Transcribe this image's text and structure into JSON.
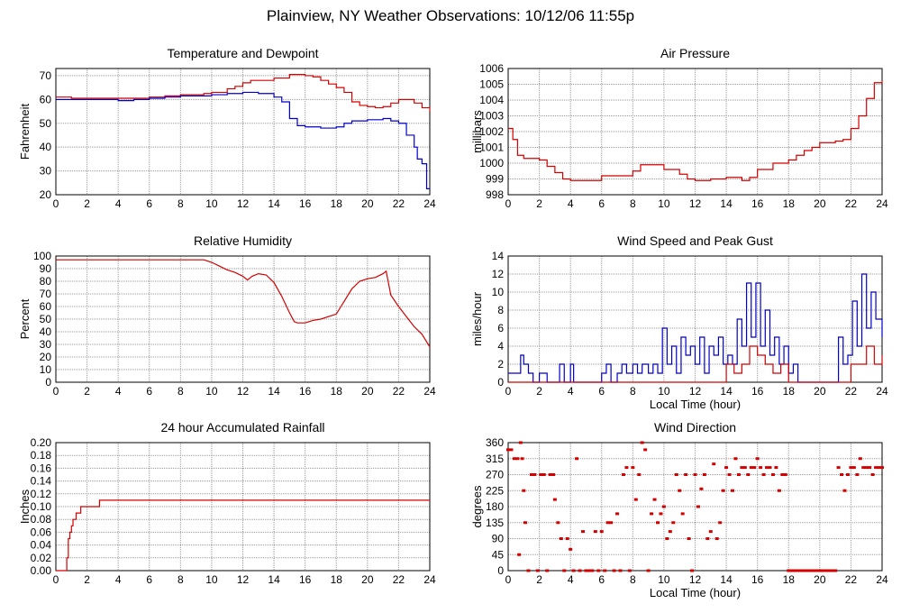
{
  "page_title": "Plainview, NY Weather Observations: 10/12/06 11:55p",
  "colors": {
    "red": "#d40000",
    "blue": "#0000cc",
    "grid": "#9a9a9a",
    "axis": "#000000"
  },
  "chart_data": [
    {
      "id": "temp",
      "type": "line",
      "title": "Temperature and Dewpoint",
      "xlabel": "",
      "ylabel": "Fahrenheit",
      "xlim": [
        0,
        24
      ],
      "ylim": [
        20,
        73
      ],
      "yticks": [
        20,
        30,
        40,
        50,
        60,
        70
      ],
      "xticks": [
        0,
        2,
        4,
        6,
        8,
        10,
        12,
        14,
        16,
        18,
        20,
        22,
        24
      ],
      "series": [
        {
          "color": "#d40000",
          "step": true,
          "x": [
            0,
            0.5,
            1,
            2,
            3,
            4,
            5,
            6,
            6.5,
            7,
            8,
            9,
            9.5,
            10,
            11,
            11.5,
            12,
            12.5,
            13,
            14,
            15,
            15.5,
            16,
            16.5,
            17,
            17.5,
            18,
            18.5,
            19,
            19.5,
            20,
            20.5,
            21,
            21.5,
            22,
            22.5,
            23,
            23.5,
            24
          ],
          "y": [
            61,
            61,
            60.5,
            60.5,
            60.5,
            60.5,
            60.5,
            61,
            61,
            61.5,
            62,
            62,
            62.5,
            63,
            64.5,
            65.5,
            67,
            68,
            68,
            69,
            70.5,
            70.5,
            70,
            69.5,
            68,
            66.5,
            65,
            63,
            59,
            57.5,
            57,
            56.5,
            57,
            58.5,
            60,
            60,
            58.5,
            56.5,
            55
          ]
        },
        {
          "color": "#0000cc",
          "step": true,
          "x": [
            0,
            0.5,
            1,
            2,
            3,
            4,
            5,
            6,
            7,
            8,
            9,
            10,
            11,
            12,
            12.5,
            13,
            13.5,
            14,
            14.5,
            15,
            15.5,
            16,
            17,
            18,
            18.5,
            19,
            20,
            21,
            21.5,
            22,
            22.5,
            23,
            23.2,
            23.5,
            23.8,
            24
          ],
          "y": [
            60,
            60,
            60,
            60,
            60,
            59.5,
            60,
            60.5,
            61,
            61.5,
            61.5,
            62,
            62.5,
            63,
            63,
            62.5,
            62.5,
            61,
            59,
            52,
            49,
            48.5,
            48,
            48.5,
            50,
            51,
            51.5,
            52,
            51,
            50,
            45,
            40,
            35,
            33,
            22.5,
            22.5
          ]
        }
      ]
    },
    {
      "id": "pressure",
      "type": "line",
      "title": "Air Pressure",
      "xlabel": "",
      "ylabel": "millibars",
      "xlim": [
        0,
        24
      ],
      "ylim": [
        998,
        1006
      ],
      "yticks": [
        998,
        999,
        1000,
        1001,
        1002,
        1003,
        1004,
        1005,
        1006
      ],
      "xticks": [
        0,
        2,
        4,
        6,
        8,
        10,
        12,
        14,
        16,
        18,
        20,
        22,
        24
      ],
      "series": [
        {
          "color": "#d40000",
          "step": true,
          "x": [
            0,
            0.3,
            0.6,
            1,
            2,
            2.5,
            3,
            3.5,
            4,
            5,
            6,
            7,
            8,
            8.5,
            9,
            10,
            11,
            11.5,
            12,
            13,
            14,
            15,
            15.5,
            16,
            17,
            18,
            18.5,
            19,
            19.5,
            20,
            21,
            21.5,
            22,
            22.5,
            23,
            23.5,
            24
          ],
          "y": [
            1002.2,
            1001.5,
            1000.5,
            1000.3,
            1000.2,
            999.8,
            999.4,
            999.0,
            998.9,
            998.9,
            999.2,
            999.2,
            999.5,
            999.9,
            999.9,
            999.6,
            999.3,
            999.0,
            998.9,
            999.0,
            999.1,
            998.9,
            999.1,
            999.6,
            1000.0,
            1000.2,
            1000.5,
            1000.8,
            1001.0,
            1001.3,
            1001.4,
            1001.5,
            1002.2,
            1003.0,
            1004.1,
            1005.1,
            1005.2
          ]
        }
      ]
    },
    {
      "id": "humidity",
      "type": "line",
      "title": "Relative Humidity",
      "xlabel": "",
      "ylabel": "Percent",
      "xlim": [
        0,
        24
      ],
      "ylim": [
        0,
        100
      ],
      "yticks": [
        0,
        10,
        20,
        30,
        40,
        50,
        60,
        70,
        80,
        90,
        100
      ],
      "xticks": [
        0,
        2,
        4,
        6,
        8,
        10,
        12,
        14,
        16,
        18,
        20,
        22,
        24
      ],
      "series": [
        {
          "color": "#d40000",
          "step": false,
          "x": [
            0,
            2,
            4,
            6,
            8,
            9.5,
            10,
            10.5,
            11,
            11.5,
            12,
            12.3,
            12.6,
            13,
            13.5,
            14,
            14.5,
            15,
            15.3,
            15.5,
            16,
            16.5,
            17,
            17.5,
            18,
            18.5,
            19,
            19.5,
            20,
            20.5,
            21,
            21.2,
            21.5,
            22,
            22.5,
            23,
            23.5,
            24
          ],
          "y": [
            97,
            97,
            97,
            97,
            97,
            97,
            95,
            92,
            89,
            87,
            84,
            81,
            84,
            86,
            85,
            79,
            68,
            55,
            48,
            47,
            47,
            49,
            50,
            52,
            54,
            64,
            74,
            80,
            82,
            83,
            86,
            88,
            69,
            60,
            52,
            44,
            38,
            28
          ]
        }
      ]
    },
    {
      "id": "wind",
      "type": "line",
      "title": "Wind Speed and Peak Gust",
      "xlabel": "Local Time (hour)",
      "ylabel": "miles/hour",
      "xlim": [
        0,
        24
      ],
      "ylim": [
        0,
        14
      ],
      "yticks": [
        0,
        2,
        4,
        6,
        8,
        10,
        12,
        14
      ],
      "xticks": [
        0,
        2,
        4,
        6,
        8,
        10,
        12,
        14,
        16,
        18,
        20,
        22,
        24
      ],
      "series": [
        {
          "color": "#0000cc",
          "step": true,
          "x": [
            0,
            0.5,
            0.8,
            1,
            1.3,
            1.6,
            2,
            2.5,
            3,
            3.3,
            3.6,
            4,
            4.2,
            4.5,
            5,
            5.5,
            6,
            6.3,
            6.6,
            7,
            7.3,
            7.6,
            8,
            8.3,
            8.6,
            9,
            9.3,
            9.6,
            9.9,
            10.2,
            10.5,
            10.8,
            11.1,
            11.4,
            11.7,
            12,
            12.3,
            12.6,
            12.9,
            13.2,
            13.5,
            13.8,
            14.1,
            14.4,
            14.7,
            15,
            15.3,
            15.6,
            15.9,
            16.2,
            16.5,
            16.8,
            17.1,
            17.4,
            17.7,
            18,
            18.3,
            18.6,
            19,
            20,
            21,
            21.2,
            21.5,
            21.8,
            22.1,
            22.4,
            22.7,
            23,
            23.3,
            23.6,
            24
          ],
          "y": [
            1,
            1,
            3,
            2,
            1,
            0,
            1,
            0,
            0,
            2,
            0,
            2,
            0,
            0,
            0,
            0,
            1,
            2,
            0,
            1,
            2,
            1,
            2,
            1,
            2,
            1,
            2,
            1,
            6,
            2,
            4,
            1,
            5,
            3,
            4,
            2,
            5,
            1,
            4,
            3,
            5,
            2,
            3,
            2,
            7,
            4,
            11,
            5,
            11,
            4,
            8,
            3,
            5,
            2,
            4,
            1,
            2,
            0,
            0,
            0,
            0,
            5,
            2,
            3,
            9,
            4,
            12,
            6,
            10,
            7,
            5
          ]
        },
        {
          "color": "#d40000",
          "step": true,
          "x": [
            0,
            13.5,
            14,
            14.5,
            15,
            15.5,
            16,
            16.5,
            17,
            17.5,
            18,
            21.5,
            22,
            22.5,
            23,
            23.5,
            24
          ],
          "y": [
            0,
            0,
            2,
            1,
            2,
            4,
            3,
            2,
            1,
            2,
            0,
            0,
            2,
            2,
            4,
            2,
            3
          ]
        }
      ]
    },
    {
      "id": "rain",
      "type": "line",
      "title": "24 hour Accumulated Rainfall",
      "xlabel": "",
      "ylabel": "Inches",
      "xlim": [
        0,
        24
      ],
      "ylim": [
        0,
        0.2
      ],
      "yticks": [
        "0.00",
        "0.02",
        "0.04",
        "0.06",
        "0.08",
        "0.10",
        "0.12",
        "0.14",
        "0.16",
        "0.18",
        "0.20"
      ],
      "xticks": [
        0,
        2,
        4,
        6,
        8,
        10,
        12,
        14,
        16,
        18,
        20,
        22,
        24
      ],
      "series": [
        {
          "color": "#d40000",
          "step": true,
          "x": [
            0,
            0.6,
            0.7,
            0.8,
            0.9,
            1.0,
            1.1,
            1.3,
            1.6,
            2.0,
            2.5,
            2.8,
            24
          ],
          "y": [
            0,
            0,
            0.02,
            0.05,
            0.06,
            0.07,
            0.08,
            0.09,
            0.1,
            0.1,
            0.1,
            0.11,
            0.11
          ]
        }
      ]
    },
    {
      "id": "winddir",
      "type": "scatter",
      "title": "Wind Direction",
      "xlabel": "Local Time (hour)",
      "ylabel": "degrees",
      "xlim": [
        0,
        24
      ],
      "ylim": [
        0,
        360
      ],
      "yticks": [
        0,
        45,
        90,
        135,
        180,
        225,
        270,
        315,
        360
      ],
      "xticks": [
        0,
        2,
        4,
        6,
        8,
        10,
        12,
        14,
        16,
        18,
        20,
        22,
        24
      ],
      "series": [
        {
          "color": "#d40000",
          "x": [
            0,
            0.2,
            0.4,
            0.6,
            0.7,
            0.8,
            0.9,
            1.0,
            1.1,
            1.3,
            1.5,
            1.7,
            1.9,
            2.1,
            2.3,
            2.5,
            2.7,
            2.9,
            3.0,
            3.2,
            3.4,
            3.6,
            3.8,
            4.0,
            4.2,
            4.4,
            4.6,
            4.8,
            5.0,
            5.2,
            5.4,
            5.6,
            5.8,
            6.0,
            6.2,
            6.4,
            6.6,
            6.8,
            7.0,
            7.2,
            7.4,
            7.6,
            7.8,
            8.0,
            8.2,
            8.4,
            8.6,
            8.8,
            9.0,
            9.2,
            9.4,
            9.6,
            9.8,
            10.0,
            10.2,
            10.4,
            10.6,
            10.8,
            11.0,
            11.2,
            11.4,
            11.6,
            11.8,
            12.0,
            12.2,
            12.4,
            12.6,
            12.8,
            13.0,
            13.2,
            13.4,
            13.6,
            13.8,
            14.0,
            14.2,
            14.4,
            14.6,
            14.8,
            15.0,
            15.2,
            15.4,
            15.6,
            15.8,
            16.0,
            16.2,
            16.4,
            16.6,
            16.8,
            17.0,
            17.2,
            17.4,
            17.6,
            17.8,
            18.0,
            18.2,
            18.4,
            18.6,
            18.8,
            19.0,
            19.2,
            19.4,
            19.6,
            19.8,
            20.0,
            20.2,
            20.4,
            20.6,
            20.8,
            21.0,
            21.2,
            21.4,
            21.6,
            21.8,
            22.0,
            22.2,
            22.4,
            22.6,
            22.8,
            23.0,
            23.2,
            23.4,
            23.6,
            23.8,
            24.0
          ],
          "y": [
            340,
            340,
            315,
            315,
            45,
            360,
            315,
            225,
            135,
            0,
            270,
            270,
            0,
            270,
            270,
            0,
            270,
            270,
            200,
            135,
            90,
            0,
            90,
            60,
            0,
            315,
            0,
            110,
            0,
            0,
            0,
            110,
            0,
            110,
            0,
            135,
            135,
            0,
            160,
            0,
            270,
            290,
            0,
            290,
            200,
            270,
            360,
            340,
            0,
            160,
            200,
            135,
            160,
            180,
            90,
            110,
            135,
            270,
            225,
            160,
            270,
            90,
            0,
            270,
            180,
            230,
            270,
            90,
            110,
            300,
            90,
            135,
            225,
            290,
            270,
            225,
            315,
            270,
            290,
            290,
            270,
            290,
            290,
            315,
            290,
            270,
            290,
            290,
            270,
            290,
            225,
            270,
            270,
            0,
            0,
            0,
            0,
            0,
            0,
            0,
            0,
            0,
            0,
            0,
            0,
            0,
            0,
            0,
            0,
            290,
            270,
            225,
            270,
            290,
            290,
            270,
            315,
            290,
            290,
            290,
            270,
            290,
            290,
            290
          ]
        }
      ]
    }
  ]
}
